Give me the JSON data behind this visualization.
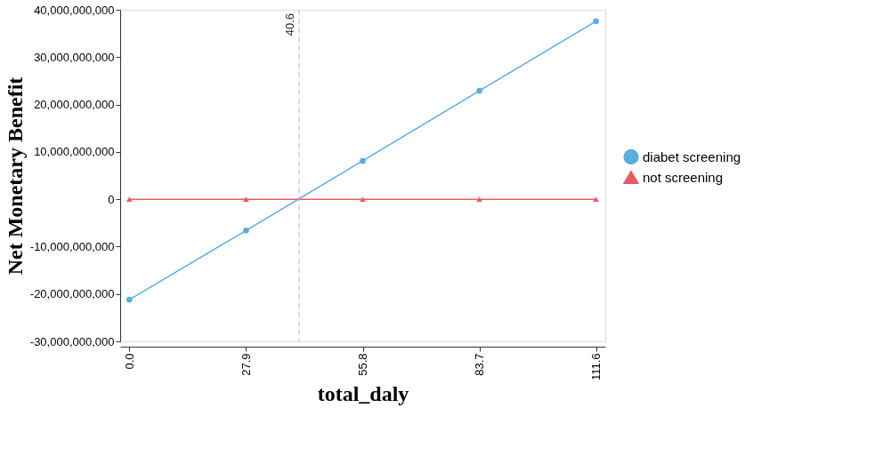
{
  "chart_data": {
    "type": "line",
    "xlabel": "total_daly",
    "ylabel": "Net Monetary Benefit",
    "x": [
      0,
      27.9,
      55.8,
      83.7,
      111.6
    ],
    "series": [
      {
        "name": "diabet screening",
        "color": "#5aaee0",
        "marker": "circle",
        "values": [
          -21200000000,
          -6600000000,
          8100000000,
          22900000000,
          37600000000
        ]
      },
      {
        "name": "not screening",
        "color": "#e85a6a",
        "marker": "triangle",
        "values": [
          0,
          0,
          0,
          0,
          0
        ]
      }
    ],
    "xlim": [
      -2.2,
      113.8
    ],
    "xticks": [
      {
        "value": 0,
        "label": "0.0"
      },
      27.9,
      55.8,
      83.7,
      111.6
    ],
    "ylim": [
      -30000000000,
      40000000000
    ],
    "yticks": [
      {
        "value": -30000000000,
        "label": "-30,000,000,000"
      },
      {
        "value": -20000000000,
        "label": "-20,000,000,000"
      },
      {
        "value": -10000000000,
        "label": "-10,000,000,000"
      },
      0,
      {
        "value": 10000000000,
        "label": "10,000,000,000"
      },
      {
        "value": 20000000000,
        "label": "20,000,000,000"
      },
      {
        "value": 30000000000,
        "label": "30,000,000,000"
      },
      {
        "value": 40000000000,
        "label": "40,000,000,000"
      }
    ],
    "ref_lines": [
      {
        "axis": "x",
        "value": 40.6,
        "label": "40.6",
        "color": "#bbbbbb",
        "line_style": "dashed"
      }
    ],
    "grid": false,
    "legend": "right",
    "line_style": "solid"
  }
}
